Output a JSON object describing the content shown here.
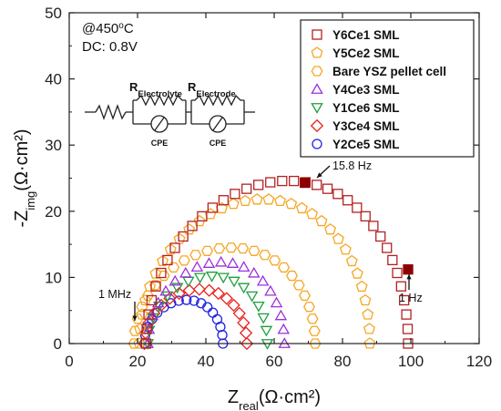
{
  "chart_data": {
    "type": "scatter",
    "title": "",
    "xlabel": {
      "main": "Z",
      "sub": "real",
      "unit": "(Ω·cm²)"
    },
    "ylabel": {
      "main": "-Z",
      "sub": "img",
      "unit": "(Ω·cm²)"
    },
    "xlim": [
      0,
      120
    ],
    "ylim": [
      0,
      50
    ],
    "xticks": [
      "0",
      "20",
      "40",
      "60",
      "80",
      "100",
      "120"
    ],
    "yticks": [
      "0",
      "10",
      "20",
      "30",
      "40",
      "50"
    ],
    "grid": false,
    "legend_position": "top-right",
    "conditions": [
      "@450",
      "o",
      "C",
      "DC: 0.8V"
    ],
    "circuit": {
      "r1": {
        "main": "R",
        "sub": "Electrolyte"
      },
      "r2": {
        "main": "R",
        "sub": "Electrode"
      },
      "cpe": "CPE"
    },
    "annotations": {
      "freq_high": "1 MHz",
      "freq_peak": "15.8 Hz",
      "freq_low": "1 Hz"
    },
    "highlighted_points": [
      [
        69,
        24.3
      ],
      [
        99.2,
        11.2
      ]
    ],
    "series": [
      {
        "name": "Y6Ce1 SML",
        "color": "#b22222",
        "marker": "square",
        "arc": {
          "start": 22.5,
          "end": 99.2,
          "peak": 24.6,
          "skew": 0.35
        }
      },
      {
        "name": "Y5Ce2 SML",
        "color": "#f5a623",
        "marker": "pentagon",
        "arc": {
          "start": 20.5,
          "end": 88,
          "peak": 21.8,
          "skew": 0.3
        }
      },
      {
        "name": "Bare YSZ pellet cell",
        "color": "#f5a623",
        "marker": "hexagon",
        "arc": {
          "start": 19,
          "end": 72,
          "peak": 14.5,
          "skew": 0.3
        }
      },
      {
        "name": "Y4Ce3 SML",
        "color": "#9b30d9",
        "marker": "triangle-up",
        "arc": {
          "start": 23,
          "end": 63,
          "peak": 12.3,
          "skew": 0.3
        }
      },
      {
        "name": "Y1Ce6 SML",
        "color": "#1f9e3c",
        "marker": "triangle-down",
        "arc": {
          "start": 23,
          "end": 58,
          "peak": 10.2,
          "skew": 0.3
        }
      },
      {
        "name": "Y3Ce4 SML",
        "color": "#e8231f",
        "marker": "diamond",
        "arc": {
          "start": 22,
          "end": 52,
          "peak": 8.2,
          "skew": 0.3
        }
      },
      {
        "name": "Y2Ce5 SML",
        "color": "#2222e0",
        "marker": "circle",
        "arc": {
          "start": 22,
          "end": 45,
          "peak": 6.6,
          "skew": 0.3
        }
      }
    ]
  }
}
